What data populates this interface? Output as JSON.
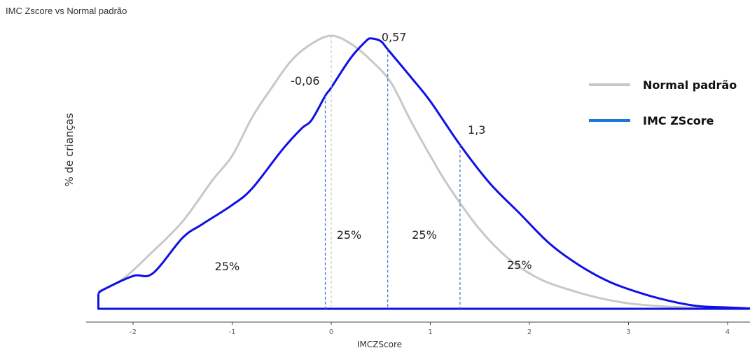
{
  "chart_data": {
    "type": "line",
    "title": "IMC Zscore vs Normal padrão",
    "xlabel": "IMCZScore",
    "ylabel": "% de crianças",
    "xlim": [
      -2.35,
      4.3
    ],
    "x_ticks": [
      "-2",
      "-1",
      "0",
      "1",
      "2",
      "3",
      "4"
    ],
    "x_tick_values": [
      -2,
      -1,
      0,
      1,
      2,
      3,
      4
    ],
    "grid": false,
    "legend_position": "right",
    "series": [
      {
        "name": "Normal padrão",
        "color": "#c8c8c8",
        "x": [
          -2.35,
          -2.1,
          -1.8,
          -1.5,
          -1.2,
          -1.0,
          -0.8,
          -0.6,
          -0.4,
          -0.2,
          0.0,
          0.2,
          0.4,
          0.6,
          0.8,
          1.0,
          1.2,
          1.5,
          1.8,
          2.1,
          2.4,
          2.7,
          3.0,
          3.3,
          3.6,
          4.0,
          4.3
        ],
        "y": [
          0.063,
          0.11,
          0.21,
          0.32,
          0.47,
          0.56,
          0.7,
          0.81,
          0.91,
          0.97,
          1.0,
          0.97,
          0.91,
          0.83,
          0.69,
          0.56,
          0.44,
          0.29,
          0.18,
          0.11,
          0.07,
          0.04,
          0.02,
          0.01,
          0.005,
          0.002,
          0.0
        ]
      },
      {
        "name": "IMC ZScore",
        "color": "#1010e6",
        "x": [
          -2.35,
          -2.3,
          -2.0,
          -1.8,
          -1.5,
          -1.3,
          -1.0,
          -0.8,
          -0.5,
          -0.3,
          -0.2,
          -0.06,
          0.0,
          0.2,
          0.35,
          0.4,
          0.5,
          0.57,
          0.8,
          1.0,
          1.3,
          1.6,
          1.9,
          2.2,
          2.5,
          2.8,
          3.1,
          3.4,
          3.7,
          4.0,
          4.3
        ],
        "y": [
          0.055,
          0.07,
          0.12,
          0.13,
          0.26,
          0.31,
          0.38,
          0.44,
          0.58,
          0.66,
          0.69,
          0.78,
          0.81,
          0.92,
          0.98,
          0.99,
          0.98,
          0.95,
          0.85,
          0.76,
          0.6,
          0.46,
          0.35,
          0.24,
          0.16,
          0.1,
          0.06,
          0.03,
          0.01,
          0.005,
          0.0
        ]
      }
    ],
    "quartile_lines": [
      {
        "x": -0.06,
        "label": "-0,06"
      },
      {
        "x": 0.57,
        "label": "0,57"
      },
      {
        "x": 1.3,
        "label": "1,3"
      }
    ],
    "mean_line": {
      "x": 0
    },
    "area_labels": [
      {
        "x": -1.05,
        "label": "25%"
      },
      {
        "x": 0.18,
        "label": "25%"
      },
      {
        "x": 0.94,
        "label": "25%"
      },
      {
        "x": 1.9,
        "label": "25%"
      }
    ]
  }
}
